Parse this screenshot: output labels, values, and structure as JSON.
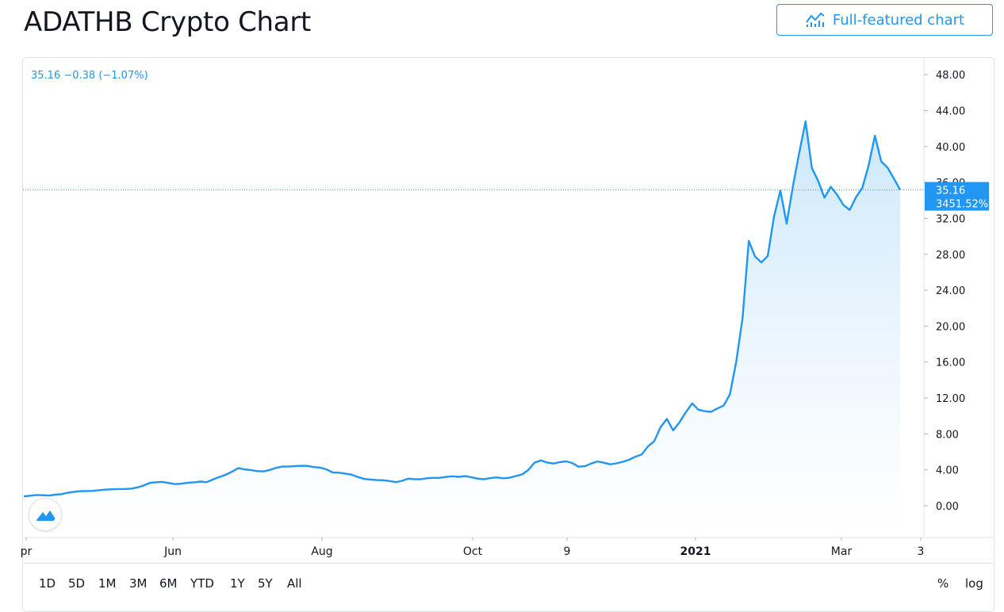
{
  "header": {
    "title": "ADATHB Crypto Chart",
    "full_chart_label": "Full-featured chart"
  },
  "legend": {
    "text": "35.16 −0.38 (−1.07%)"
  },
  "price_label": {
    "price": "35.16",
    "percent": "3451.52%"
  },
  "range_buttons": [
    "1D",
    "5D",
    "1M",
    "3M",
    "6M",
    "YTD",
    "1Y",
    "5Y",
    "All"
  ],
  "scale_toggles": {
    "percent": "%",
    "log": "log"
  },
  "colors": {
    "accent": "#2196f3",
    "line": "#2196f3",
    "area_top": "#c9e6fb",
    "area_bottom": "#ffffff",
    "grid": "#e0e3eb"
  },
  "chart_data": {
    "type": "area",
    "x_tick_labels": [
      "pr",
      "Jun",
      "Aug",
      "Oct",
      "9",
      "2021",
      "Mar",
      "3"
    ],
    "y_tick_labels": [
      "48.00",
      "44.00",
      "40.00",
      "36.00",
      "32.00",
      "28.00",
      "24.00",
      "20.00",
      "16.00",
      "12.00",
      "8.00",
      "4.00",
      "0.00"
    ],
    "ylim": [
      -3.2,
      48.0
    ],
    "last_value": 35.16,
    "grid": false,
    "series": [
      {
        "values": [
          1.05,
          1.12,
          1.2,
          1.17,
          1.14,
          1.24,
          1.3,
          1.46,
          1.55,
          1.62,
          1.64,
          1.66,
          1.74,
          1.8,
          1.84,
          1.86,
          1.87,
          1.91,
          2.04,
          2.25,
          2.55,
          2.62,
          2.66,
          2.53,
          2.41,
          2.46,
          2.56,
          2.61,
          2.69,
          2.63,
          2.92,
          3.2,
          3.44,
          3.79,
          4.18,
          4.06,
          3.97,
          3.87,
          3.82,
          3.98,
          4.22,
          4.36,
          4.37,
          4.42,
          4.45,
          4.44,
          4.31,
          4.25,
          4.05,
          3.72,
          3.68,
          3.58,
          3.47,
          3.2,
          2.98,
          2.92,
          2.86,
          2.84,
          2.75,
          2.63,
          2.78,
          3.02,
          2.95,
          2.96,
          3.07,
          3.11,
          3.12,
          3.21,
          3.28,
          3.22,
          3.3,
          3.18,
          3.02,
          2.96,
          3.08,
          3.16,
          3.06,
          3.12,
          3.3,
          3.48,
          3.97,
          4.78,
          5.05,
          4.82,
          4.7,
          4.85,
          4.95,
          4.76,
          4.35,
          4.4,
          4.7,
          4.93,
          4.79,
          4.62,
          4.72,
          4.9,
          5.12,
          5.46,
          5.7,
          6.6,
          7.2,
          8.74,
          9.67,
          8.39,
          9.29,
          10.4,
          11.4,
          10.7,
          10.53,
          10.46,
          10.83,
          11.15,
          12.4,
          16.0,
          20.87,
          29.5,
          27.73,
          27.1,
          27.8,
          32.2,
          35.1,
          31.4,
          35.6,
          39.3,
          42.8,
          37.62,
          36.16,
          34.3,
          35.52,
          34.63,
          33.49,
          32.94,
          34.36,
          35.38,
          37.88,
          41.2,
          38.33,
          37.65,
          36.44,
          35.16
        ]
      }
    ]
  }
}
